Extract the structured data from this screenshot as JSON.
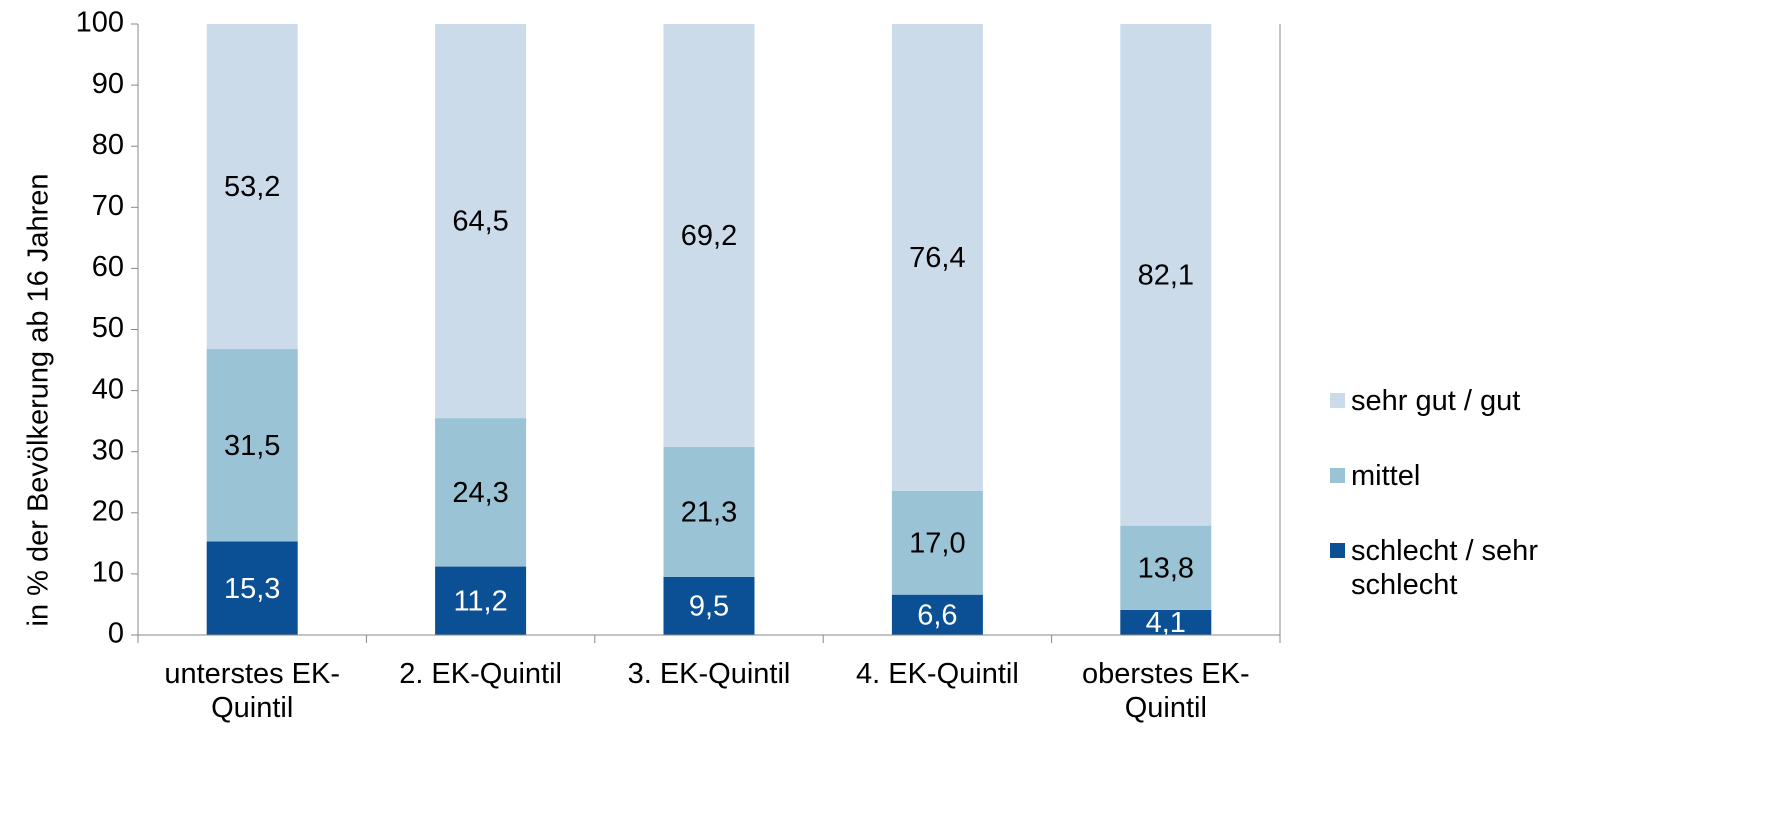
{
  "chart_data": {
    "type": "stacked_bar",
    "y_label": "in % der Bevölkerung ab 16 Jahren",
    "categories": [
      "unterstes EK-Quintil",
      "2. EK-Quintil",
      "3. EK-Quintil",
      "4. EK-Quintil",
      "oberstes EK-Quintil"
    ],
    "series": [
      {
        "name": "schlecht / sehr schlecht",
        "color": "#0b4f94",
        "values": [
          15.3,
          11.2,
          9.5,
          6.6,
          4.1
        ],
        "value_labels": [
          "15,3",
          "11,2",
          "9,5",
          "6,6",
          "4,1"
        ]
      },
      {
        "name": "mittel",
        "color": "#9ac3d6",
        "values": [
          31.5,
          24.3,
          21.3,
          17.0,
          13.8
        ],
        "value_labels": [
          "31,5",
          "24,3",
          "21,3",
          "17,0",
          "13,8"
        ]
      },
      {
        "name": "sehr gut / gut",
        "color": "#cbdbea",
        "values": [
          53.2,
          64.5,
          69.2,
          76.4,
          82.1
        ],
        "value_labels": [
          "53,2",
          "64,5",
          "69,2",
          "76,4",
          "82,1"
        ]
      }
    ],
    "ylim": [
      0,
      100
    ],
    "yticks": [
      0,
      10,
      20,
      30,
      40,
      50,
      60,
      70,
      80,
      90,
      100
    ],
    "legend": "right"
  }
}
